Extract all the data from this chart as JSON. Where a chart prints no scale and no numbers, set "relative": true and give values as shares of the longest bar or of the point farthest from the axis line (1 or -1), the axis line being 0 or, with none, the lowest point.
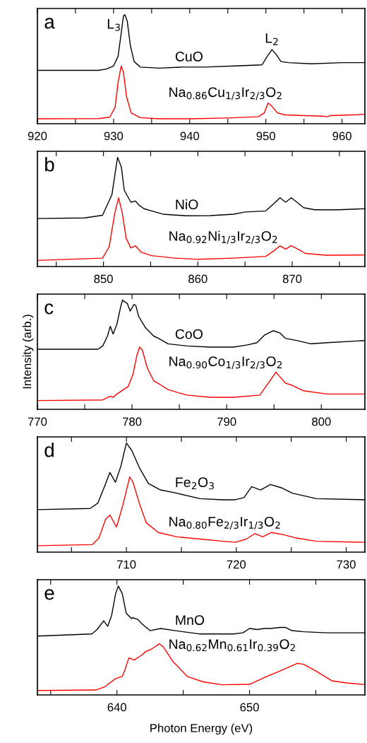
{
  "chart_data": [
    {
      "type": "line",
      "title": "a",
      "relative": true,
      "tick_labels": "x",
      "xlim": [
        920,
        963
      ],
      "xticks": [
        920,
        {
          "value": 925,
          "label": null
        },
        930,
        {
          "value": 935,
          "label": null
        },
        940,
        {
          "value": 945,
          "label": null
        },
        950,
        {
          "value": 955,
          "label": null
        },
        960
      ],
      "annotations": [
        {
          "text": "L$_{3}$",
          "x": 931.5,
          "y": 1.0
        },
        {
          "text": "L$_{2}$",
          "x": 950.8,
          "y": 0.68
        }
      ],
      "series": [
        {
          "name": "CuO",
          "color": "#000000",
          "x": [
            920,
            928,
            929,
            930,
            930.6,
            931,
            931.3,
            931.5,
            931.8,
            932.2,
            932.7,
            933.5,
            936,
            939,
            942,
            946,
            949.5,
            950.2,
            950.8,
            951.3,
            952,
            953,
            956,
            960,
            963
          ],
          "values": [
            0.49,
            0.49,
            0.5,
            0.53,
            0.62,
            0.83,
            0.99,
            1.0,
            0.94,
            0.72,
            0.57,
            0.52,
            0.51,
            0.52,
            0.52,
            0.53,
            0.54,
            0.62,
            0.68,
            0.64,
            0.57,
            0.56,
            0.55,
            0.56,
            0.56
          ]
        },
        {
          "name": "Na$_{0.86}$Cu$_{1/3}$Ir$_{2/3}$O$_{2}$",
          "color": "#ff0000",
          "x": [
            920,
            928,
            929.5,
            930.2,
            930.6,
            931.0,
            931.3,
            931.7,
            932.3,
            933.5,
            936,
            940,
            945,
            949,
            949.8,
            950.3,
            950.8,
            951.5,
            952.5,
            955,
            957.5,
            958,
            958.5,
            962,
            963
          ],
          "values": [
            0.045,
            0.047,
            0.06,
            0.15,
            0.38,
            0.53,
            0.47,
            0.25,
            0.1,
            0.056,
            0.045,
            0.045,
            0.053,
            0.064,
            0.1,
            0.19,
            0.16,
            0.1,
            0.081,
            0.075,
            0.07,
            0.064,
            0.075,
            0.083,
            0.088
          ]
        }
      ]
    },
    {
      "type": "line",
      "title": "b",
      "relative": true,
      "tick_labels": "x",
      "xlim": [
        843,
        877.7
      ],
      "xticks": [
        {
          "value": 845,
          "label": null
        },
        850,
        {
          "value": 855,
          "label": null
        },
        860,
        {
          "value": 865,
          "label": null
        },
        870,
        {
          "value": 875,
          "label": null
        }
      ],
      "series": [
        {
          "name": "NiO",
          "color": "#000000",
          "x": [
            843,
            848,
            849.9,
            850.9,
            851.4,
            851.5,
            851.9,
            852.2,
            852.9,
            853.4,
            853.8,
            854.3,
            855.1,
            856.3,
            858.8,
            861.3,
            863.8,
            865,
            867.2,
            868.1,
            868.7,
            869.3,
            869.9,
            870.5,
            871.2,
            872.4,
            874.9,
            877.7
          ],
          "values": [
            0.44,
            0.446,
            0.47,
            0.66,
            0.95,
            1.0,
            0.91,
            0.7,
            0.59,
            0.6,
            0.56,
            0.53,
            0.51,
            0.48,
            0.465,
            0.467,
            0.48,
            0.5,
            0.51,
            0.58,
            0.63,
            0.59,
            0.63,
            0.59,
            0.54,
            0.52,
            0.52,
            0.53
          ]
        },
        {
          "name": "Na$_{0.92}$Ni$_{1/3}$Ir$_{2/3}$O$_{2}$",
          "color": "#ff0000",
          "x": [
            843,
            849.9,
            850.6,
            851.2,
            851.6,
            852.0,
            852.4,
            852.9,
            853.4,
            854,
            855.1,
            857.6,
            860,
            863.8,
            867.2,
            868,
            868.7,
            869.3,
            869.9,
            870.6,
            871.4,
            873.6,
            877.7
          ],
          "values": [
            0.056,
            0.077,
            0.18,
            0.49,
            0.63,
            0.49,
            0.26,
            0.17,
            0.19,
            0.13,
            0.1,
            0.077,
            0.066,
            0.077,
            0.093,
            0.14,
            0.19,
            0.16,
            0.19,
            0.16,
            0.12,
            0.104,
            0.106
          ]
        }
      ]
    },
    {
      "type": "line",
      "title": "c",
      "ylabel": "Intensity (arb.)",
      "relative": true,
      "tick_labels": "x",
      "xlim": [
        770,
        804.6
      ],
      "xticks": [
        770,
        {
          "value": 775,
          "label": null
        },
        780,
        {
          "value": 785,
          "label": null
        },
        790,
        {
          "value": 795,
          "label": null
        },
        800
      ],
      "series": [
        {
          "name": "CoO",
          "color": "#000000",
          "x": [
            770,
            776.4,
            776.9,
            777.4,
            777.7,
            778.0,
            778.4,
            778.8,
            779.0,
            779.3,
            779.5,
            779.8,
            780.2,
            780.4,
            780.7,
            781.4,
            782.3,
            782.8,
            783.8,
            785.8,
            788.3,
            790.7,
            792.2,
            793.2,
            794,
            794.9,
            795.6,
            796.2,
            797.4,
            798.9,
            800.6,
            804.6
          ],
          "values": [
            0.55,
            0.55,
            0.58,
            0.67,
            0.76,
            0.69,
            0.78,
            0.94,
            1.0,
            0.98,
            0.97,
            0.9,
            0.96,
            0.95,
            0.85,
            0.75,
            0.67,
            0.65,
            0.6,
            0.58,
            0.57,
            0.57,
            0.59,
            0.61,
            0.68,
            0.72,
            0.7,
            0.65,
            0.63,
            0.6,
            0.61,
            0.63
          ]
        },
        {
          "name": "Na$_{0.90}$Co$_{1/3}$Ir$_{2/3}$O$_{2}$",
          "color": "#ff0000",
          "x": [
            770,
            776.9,
            777.7,
            778,
            778.4,
            779.1,
            779.6,
            780.1,
            780.5,
            780.8,
            781.1,
            781.6,
            782.3,
            782.9,
            783.8,
            785.8,
            788.3,
            790.7,
            793.5,
            794.4,
            795.2,
            795.6,
            796.2,
            796.9,
            798.1,
            800.6,
            804.6
          ],
          "values": [
            0.08,
            0.086,
            0.12,
            0.11,
            0.14,
            0.18,
            0.21,
            0.32,
            0.49,
            0.57,
            0.54,
            0.38,
            0.26,
            0.23,
            0.18,
            0.13,
            0.11,
            0.11,
            0.13,
            0.24,
            0.34,
            0.3,
            0.24,
            0.22,
            0.17,
            0.14,
            0.14
          ]
        }
      ]
    },
    {
      "type": "line",
      "title": "d",
      "relative": true,
      "tick_labels": "x",
      "xlim": [
        701.9,
        731.7
      ],
      "xticks": [
        {
          "value": 705,
          "label": null
        },
        710,
        {
          "value": 715,
          "label": null
        },
        720,
        {
          "value": 725,
          "label": null
        },
        730
      ],
      "series": [
        {
          "name": "Fe$_{2}$O$_{3}$",
          "color": "#000000",
          "x": [
            701.9,
            706.7,
            707.4,
            708,
            708.5,
            709,
            709.5,
            710.0,
            710.5,
            711.2,
            712,
            713.1,
            714.6,
            716.7,
            718.8,
            719.9,
            720.7,
            721.4,
            722.2,
            723.1,
            724.1,
            725.1,
            727.3,
            731.7
          ],
          "values": [
            0.39,
            0.4,
            0.45,
            0.6,
            0.73,
            0.64,
            0.79,
            1.0,
            0.93,
            0.77,
            0.63,
            0.57,
            0.54,
            0.49,
            0.48,
            0.48,
            0.5,
            0.6,
            0.57,
            0.62,
            0.59,
            0.54,
            0.49,
            0.48
          ]
        },
        {
          "name": "Na$_{0.80}$Fe$_{2/3}$Ir$_{1/3}$O$_{2}$",
          "color": "#ff0000",
          "x": [
            701.9,
            706.9,
            707.5,
            708.1,
            708.5,
            709.1,
            709.7,
            710.3,
            710.6,
            711.2,
            711.8,
            712.9,
            714.6,
            716.7,
            718.8,
            719.9,
            720.9,
            721.7,
            722.4,
            723.2,
            724.3,
            725.4,
            727.3,
            731.7
          ],
          "values": [
            0.059,
            0.069,
            0.13,
            0.3,
            0.34,
            0.23,
            0.44,
            0.69,
            0.64,
            0.44,
            0.27,
            0.18,
            0.14,
            0.12,
            0.1,
            0.09,
            0.12,
            0.17,
            0.14,
            0.18,
            0.16,
            0.13,
            0.1,
            0.09
          ]
        }
      ]
    },
    {
      "type": "line",
      "title": "e",
      "xlabel": "Photon Energy (eV)",
      "relative": true,
      "tick_labels": "x",
      "xlim": [
        634.0,
        658.7
      ],
      "xticks": [
        {
          "value": 635,
          "label": null
        },
        640,
        {
          "value": 645,
          "label": null
        },
        650,
        {
          "value": 655,
          "label": null
        }
      ],
      "series": [
        {
          "name": "MnO",
          "color": "#000000",
          "x": [
            634.0,
            638.1,
            638.5,
            639.0,
            639.3,
            639.6,
            639.9,
            640.1,
            640.4,
            640.7,
            641.1,
            641.2,
            641.6,
            641.9,
            642.5,
            643.3,
            644.4,
            646.2,
            648.8,
            649.5,
            650,
            650.6,
            651.1,
            651.6,
            652.3,
            652.7,
            653.2,
            654.1,
            655.8,
            658.7
          ],
          "values": [
            0.54,
            0.56,
            0.6,
            0.68,
            0.63,
            0.73,
            0.93,
            1.0,
            0.93,
            0.75,
            0.7,
            0.71,
            0.69,
            0.65,
            0.59,
            0.61,
            0.59,
            0.56,
            0.56,
            0.57,
            0.61,
            0.6,
            0.61,
            0.61,
            0.62,
            0.62,
            0.59,
            0.58,
            0.57,
            0.57
          ]
        },
        {
          "name": "Na$_{0.62}$Mn$_{0.61}$Ir$_{0.39}$O$_{2}$",
          "color": "#ff0000",
          "x": [
            634.0,
            638.4,
            639.1,
            639.9,
            640.4,
            640.6,
            640.9,
            641.3,
            641.8,
            642.2,
            642.6,
            643.2,
            643.5,
            644.2,
            645.3,
            646.5,
            647.9,
            650,
            650.6,
            651.3,
            652.3,
            653.6,
            654.1,
            655,
            656.2,
            657.3,
            658.7
          ],
          "values": [
            0.041,
            0.045,
            0.076,
            0.15,
            0.17,
            0.23,
            0.34,
            0.32,
            0.36,
            0.4,
            0.42,
            0.47,
            0.44,
            0.31,
            0.17,
            0.12,
            0.093,
            0.097,
            0.13,
            0.17,
            0.22,
            0.29,
            0.28,
            0.22,
            0.13,
            0.11,
            0.095
          ]
        }
      ]
    }
  ]
}
